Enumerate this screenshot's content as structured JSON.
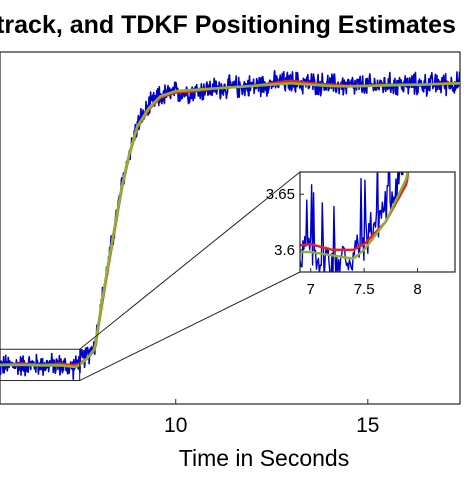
{
  "chart_data": {
    "type": "line",
    "title": "track, and TDKF Positioning Estimates",
    "xlabel": "Time in Seconds",
    "ylabel": "",
    "xlim": [
      5.4,
      17.4
    ],
    "ylim": [
      3.45,
      4.8
    ],
    "x_ticks": [
      10,
      15
    ],
    "y_ticks": [],
    "grid": false,
    "series": [
      {
        "color": "#0000cc",
        "x": [
          5.4,
          6.0,
          6.5,
          7.0,
          7.2,
          7.4,
          7.5,
          7.7,
          7.9,
          8.0,
          8.2,
          8.4,
          8.6,
          8.8,
          9.0,
          9.3,
          9.6,
          10.0,
          10.5,
          11.0,
          11.5,
          12.0,
          12.5,
          13.0,
          13.5,
          14.0,
          14.5,
          15.0,
          15.5,
          16.0,
          16.5,
          17.0,
          17.4
        ],
        "y": [
          3.595,
          3.6,
          3.6,
          3.6,
          3.59,
          3.595,
          3.61,
          3.64,
          3.68,
          3.78,
          3.95,
          4.12,
          4.29,
          4.42,
          4.52,
          4.59,
          4.63,
          4.645,
          4.65,
          4.66,
          4.665,
          4.67,
          4.68,
          4.685,
          4.68,
          4.675,
          4.67,
          4.67,
          4.675,
          4.675,
          4.675,
          4.68,
          4.68
        ],
        "noise": 0.035
      },
      {
        "color": "#e82020",
        "x": [
          5.4,
          6.0,
          6.5,
          7.0,
          7.2,
          7.4,
          7.5,
          7.7,
          7.9,
          8.0,
          8.2,
          8.4,
          8.6,
          8.8,
          9.0,
          9.3,
          9.6,
          10.0,
          10.5,
          11.0,
          11.5,
          12.0,
          12.5,
          13.0,
          13.5,
          14.0,
          14.5,
          15.0,
          15.5,
          16.0,
          16.5,
          17.0,
          17.4
        ],
        "y": [
          3.6,
          3.605,
          3.6,
          3.605,
          3.6,
          3.6,
          3.605,
          3.625,
          3.66,
          3.76,
          3.94,
          4.11,
          4.28,
          4.41,
          4.51,
          4.58,
          4.625,
          4.645,
          4.65,
          4.66,
          4.665,
          4.67,
          4.68,
          4.69,
          4.68,
          4.675,
          4.67,
          4.67,
          4.675,
          4.675,
          4.675,
          4.68,
          4.68
        ]
      },
      {
        "color": "#8fb030",
        "x": [
          5.4,
          6.0,
          6.5,
          7.0,
          7.2,
          7.4,
          7.5,
          7.7,
          7.9,
          8.0,
          8.2,
          8.4,
          8.6,
          8.8,
          9.0,
          9.3,
          9.6,
          10.0,
          10.5,
          11.0,
          11.5,
          12.0,
          12.5,
          13.0,
          13.5,
          14.0,
          14.5,
          15.0,
          15.5,
          16.0,
          16.5,
          17.0,
          17.4
        ],
        "y": [
          3.6,
          3.6,
          3.598,
          3.598,
          3.595,
          3.592,
          3.6,
          3.625,
          3.665,
          3.77,
          3.95,
          4.12,
          4.285,
          4.415,
          4.515,
          4.585,
          4.63,
          4.65,
          4.655,
          4.66,
          4.665,
          4.67,
          4.675,
          4.68,
          4.675,
          4.67,
          4.668,
          4.67,
          4.672,
          4.674,
          4.675,
          4.678,
          4.68
        ]
      }
    ],
    "inset": {
      "xlim": [
        6.9,
        8.35
      ],
      "ylim": [
        3.58,
        3.67
      ],
      "x_ticks": [
        7,
        7.5,
        8
      ],
      "y_ticks": [
        3.6,
        3.65
      ],
      "x_tick_labels": [
        "7",
        "7.5",
        "8"
      ],
      "y_tick_labels": [
        "3.6",
        "3.65"
      ],
      "source_region": {
        "xlim": [
          5.4,
          7.5
        ],
        "ylim": [
          3.54,
          3.66
        ]
      }
    }
  }
}
